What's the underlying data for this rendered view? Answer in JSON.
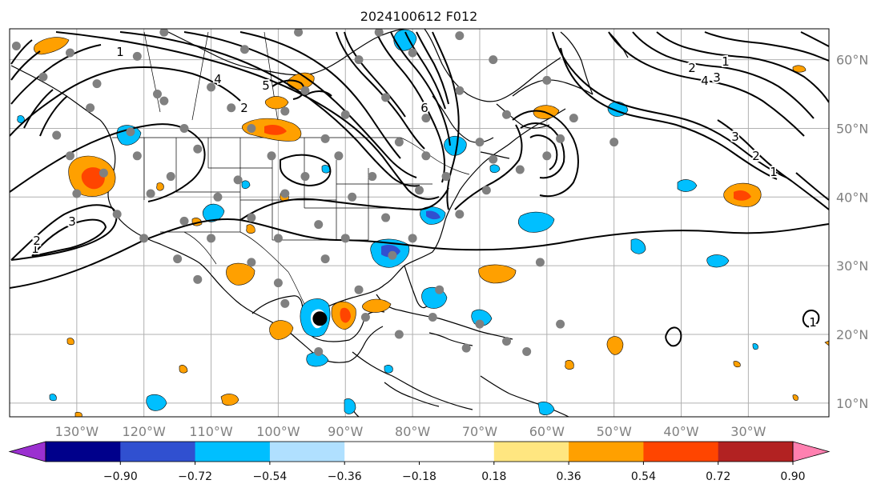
{
  "title": "2024100612 F012",
  "map": {
    "lon_min": -140,
    "lon_max": -18,
    "lat_min": 8,
    "lat_max": 64.5,
    "lon_ticks": [
      {
        "lon": -130,
        "label": "130°W"
      },
      {
        "lon": -120,
        "label": "120°W"
      },
      {
        "lon": -110,
        "label": "110°W"
      },
      {
        "lon": -100,
        "label": "100°W"
      },
      {
        "lon": -90,
        "label": "90°W"
      },
      {
        "lon": -80,
        "label": "80°W"
      },
      {
        "lon": -70,
        "label": "70°W"
      },
      {
        "lon": -60,
        "label": "60°W"
      },
      {
        "lon": -50,
        "label": "50°W"
      },
      {
        "lon": -40,
        "label": "40°W"
      },
      {
        "lon": -30,
        "label": "30°W"
      }
    ],
    "lat_ticks": [
      {
        "lat": 60,
        "label": "60°N"
      },
      {
        "lat": 50,
        "label": "50°N"
      },
      {
        "lat": 40,
        "label": "40°N"
      },
      {
        "lat": 30,
        "label": "30°N"
      },
      {
        "lat": 20,
        "label": "20°N"
      },
      {
        "lat": 10,
        "label": "10°N"
      }
    ],
    "storm_center": {
      "lon": -93.8,
      "lat": 22.3
    }
  },
  "colorbar": {
    "colors": [
      "#9b30d0",
      "#00008b",
      "#3050d0",
      "#00bfff",
      "#b0e0ff",
      "#ffffff",
      "#ffffff",
      "#ffe680",
      "#ffa000",
      "#ff4500",
      "#b22222",
      "#ff80b0"
    ],
    "tick_labels": [
      "−0.90",
      "−0.72",
      "−0.54",
      "−0.36",
      "−0.18",
      "0.18",
      "0.36",
      "0.54",
      "0.72",
      "0.90"
    ]
  },
  "contour_labels": [
    "1",
    "2",
    "3",
    "4",
    "5",
    "6",
    "1",
    "2",
    "3",
    "4",
    "1",
    "2",
    "3",
    "1",
    "2",
    "1"
  ],
  "station_points": [
    [
      -139,
      62
    ],
    [
      -117,
      64
    ],
    [
      -97,
      64
    ],
    [
      -85,
      64
    ],
    [
      -73,
      63.5
    ],
    [
      -131,
      61
    ],
    [
      -121,
      60.5
    ],
    [
      -105,
      61.5
    ],
    [
      -88,
      60
    ],
    [
      -80,
      61
    ],
    [
      -68,
      60
    ],
    [
      -135,
      57.5
    ],
    [
      -127,
      56.5
    ],
    [
      -118,
      55
    ],
    [
      -110,
      56
    ],
    [
      -96,
      55.5
    ],
    [
      -84,
      54.5
    ],
    [
      -73,
      55.5
    ],
    [
      -60,
      57
    ],
    [
      -128,
      53
    ],
    [
      -117,
      54
    ],
    [
      -107,
      53
    ],
    [
      -99,
      52.5
    ],
    [
      -90,
      52
    ],
    [
      -78,
      51.5
    ],
    [
      -66,
      52
    ],
    [
      -56,
      51.5
    ],
    [
      -133,
      49
    ],
    [
      -122,
      49.5
    ],
    [
      -114,
      50
    ],
    [
      -104,
      50
    ],
    [
      -93,
      48.5
    ],
    [
      -82,
      48
    ],
    [
      -70,
      48
    ],
    [
      -58,
      48.5
    ],
    [
      -50,
      48
    ],
    [
      -131,
      46
    ],
    [
      -121,
      46
    ],
    [
      -112,
      47
    ],
    [
      -101,
      46
    ],
    [
      -91,
      46
    ],
    [
      -78,
      46
    ],
    [
      -68,
      45.5
    ],
    [
      -60,
      46
    ],
    [
      -126,
      43.5
    ],
    [
      -116,
      43
    ],
    [
      -106,
      42.5
    ],
    [
      -96,
      43
    ],
    [
      -86,
      43
    ],
    [
      -75,
      43
    ],
    [
      -64,
      44
    ],
    [
      -130,
      40.5
    ],
    [
      -119,
      40.5
    ],
    [
      -109,
      40
    ],
    [
      -99,
      40.5
    ],
    [
      -89,
      40
    ],
    [
      -79,
      41
    ],
    [
      -69,
      41
    ],
    [
      -124,
      37.5
    ],
    [
      -114,
      36.5
    ],
    [
      -104,
      37
    ],
    [
      -94,
      36
    ],
    [
      -84,
      37
    ],
    [
      -73,
      37.5
    ],
    [
      -120,
      34
    ],
    [
      -110,
      34
    ],
    [
      -100,
      34
    ],
    [
      -90,
      34
    ],
    [
      -80,
      34
    ],
    [
      -115,
      31
    ],
    [
      -104,
      30.5
    ],
    [
      -93,
      31
    ],
    [
      -83,
      31.5
    ],
    [
      -61,
      30.5
    ],
    [
      -112,
      28
    ],
    [
      -100,
      27.5
    ],
    [
      -88,
      26.5
    ],
    [
      -76,
      26.5
    ],
    [
      -99,
      24.5
    ],
    [
      -87,
      22.5
    ],
    [
      -77,
      22.5
    ],
    [
      -70,
      21.5
    ],
    [
      -66,
      19
    ],
    [
      -82,
      20
    ],
    [
      -58,
      21.5
    ],
    [
      -94,
      17.5
    ],
    [
      -72,
      18
    ],
    [
      -63,
      17.5
    ]
  ]
}
